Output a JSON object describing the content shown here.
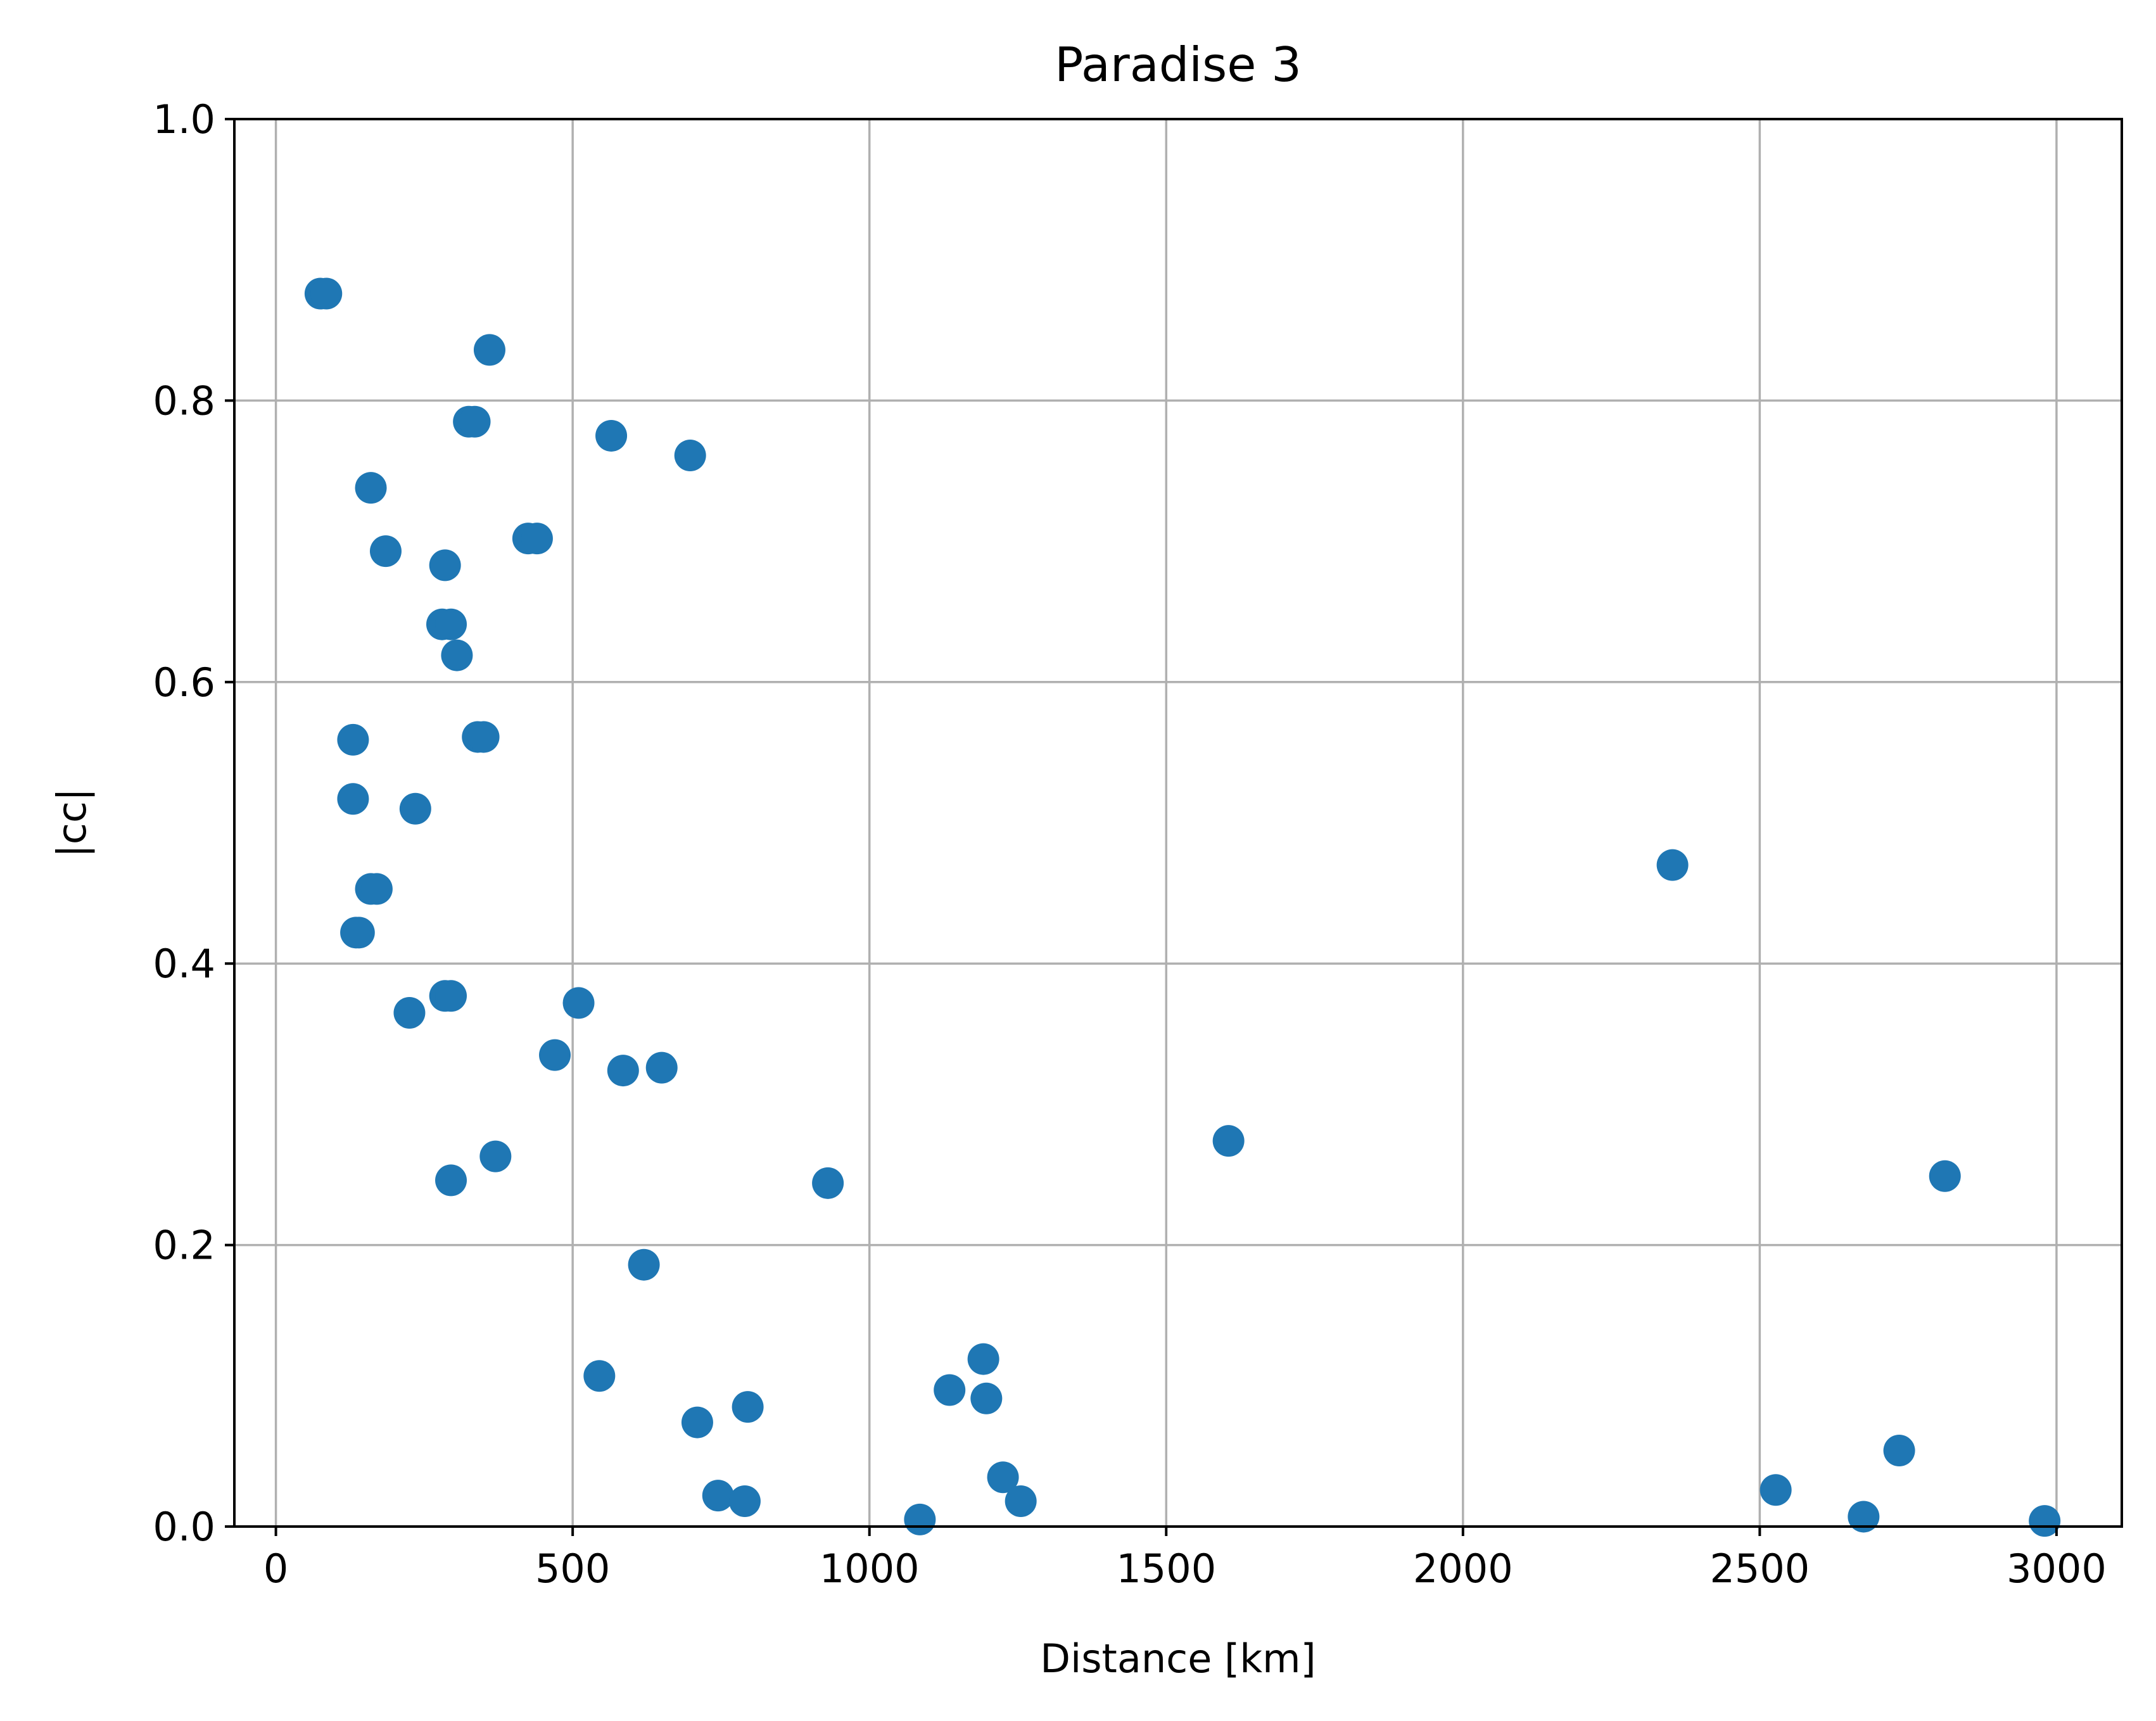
{
  "chart_data": {
    "type": "scatter",
    "title": "Paradise 3",
    "xlabel": "Distance [km]",
    "ylabel": "|cc|",
    "xlim": [
      -70,
      3110
    ],
    "ylim": [
      0.0,
      1.0
    ],
    "xticks": [
      0,
      500,
      1000,
      1500,
      2000,
      2500,
      3000
    ],
    "xtick_labels": [
      "0",
      "500",
      "1000",
      "1500",
      "2000",
      "2500",
      "3000"
    ],
    "yticks": [
      0.0,
      0.2,
      0.4,
      0.6,
      0.8,
      1.0
    ],
    "ytick_labels": [
      "0.0",
      "0.2",
      "0.4",
      "0.6",
      "0.8",
      "1.0"
    ],
    "grid": true,
    "marker_color": "#1f77b4",
    "series": [
      {
        "x": [
          75,
          85,
          360,
          325,
          335,
          565,
          698,
          160,
          185,
          285,
          425,
          440,
          280,
          295,
          305,
          130,
          340,
          350,
          130,
          235,
          2353,
          160,
          170,
          135,
          140,
          510,
          225,
          285,
          295,
          470,
          585,
          650,
          1605,
          370,
          295,
          930,
          2812,
          620,
          1192,
          545,
          1135,
          1197,
          710,
          795,
          2735,
          1225,
          745,
          790,
          1255,
          2527,
          1085,
          2675,
          2980
        ],
        "y": [
          0.876,
          0.876,
          0.836,
          0.785,
          0.785,
          0.775,
          0.761,
          0.738,
          0.693,
          0.683,
          0.702,
          0.702,
          0.641,
          0.641,
          0.619,
          0.559,
          0.561,
          0.561,
          0.517,
          0.51,
          0.47,
          0.453,
          0.453,
          0.422,
          0.422,
          0.372,
          0.365,
          0.377,
          0.377,
          0.335,
          0.324,
          0.326,
          0.274,
          0.263,
          0.246,
          0.244,
          0.249,
          0.186,
          0.119,
          0.107,
          0.097,
          0.091,
          0.074,
          0.085,
          0.054,
          0.035,
          0.022,
          0.018,
          0.018,
          0.026,
          0.005,
          0.007,
          0.004
        ]
      }
    ]
  }
}
